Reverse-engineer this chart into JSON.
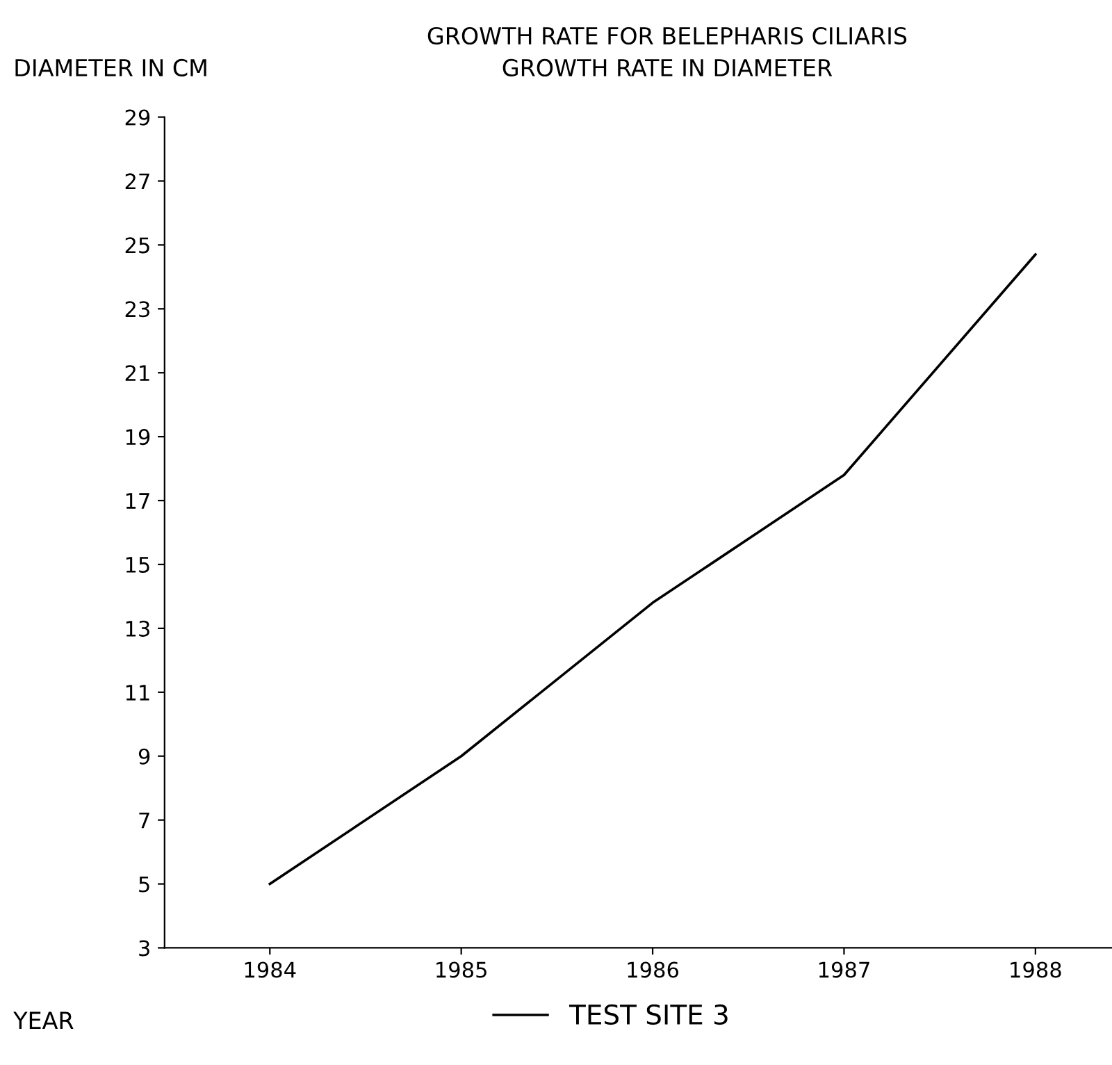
{
  "chart_data": {
    "type": "line",
    "title": "GROWTH RATE FOR BELEPHARIS CILIARIS",
    "subtitle": "GROWTH RATE IN DIAMETER",
    "xlabel": "YEAR",
    "ylabel": "DIAMETER IN CM",
    "categories": [
      "1984",
      "1985",
      "1986",
      "1987",
      "1988"
    ],
    "series": [
      {
        "name": "TEST SITE 3",
        "color": "#000000",
        "values": [
          5,
          9,
          13.8,
          17.8,
          24.7
        ]
      }
    ],
    "ylim": [
      3,
      29
    ],
    "yticks": [
      3,
      5,
      7,
      9,
      11,
      13,
      15,
      17,
      19,
      21,
      23,
      25,
      27,
      29
    ],
    "grid": false,
    "legend": "bottom",
    "marker": "none",
    "line_style": "solid"
  }
}
